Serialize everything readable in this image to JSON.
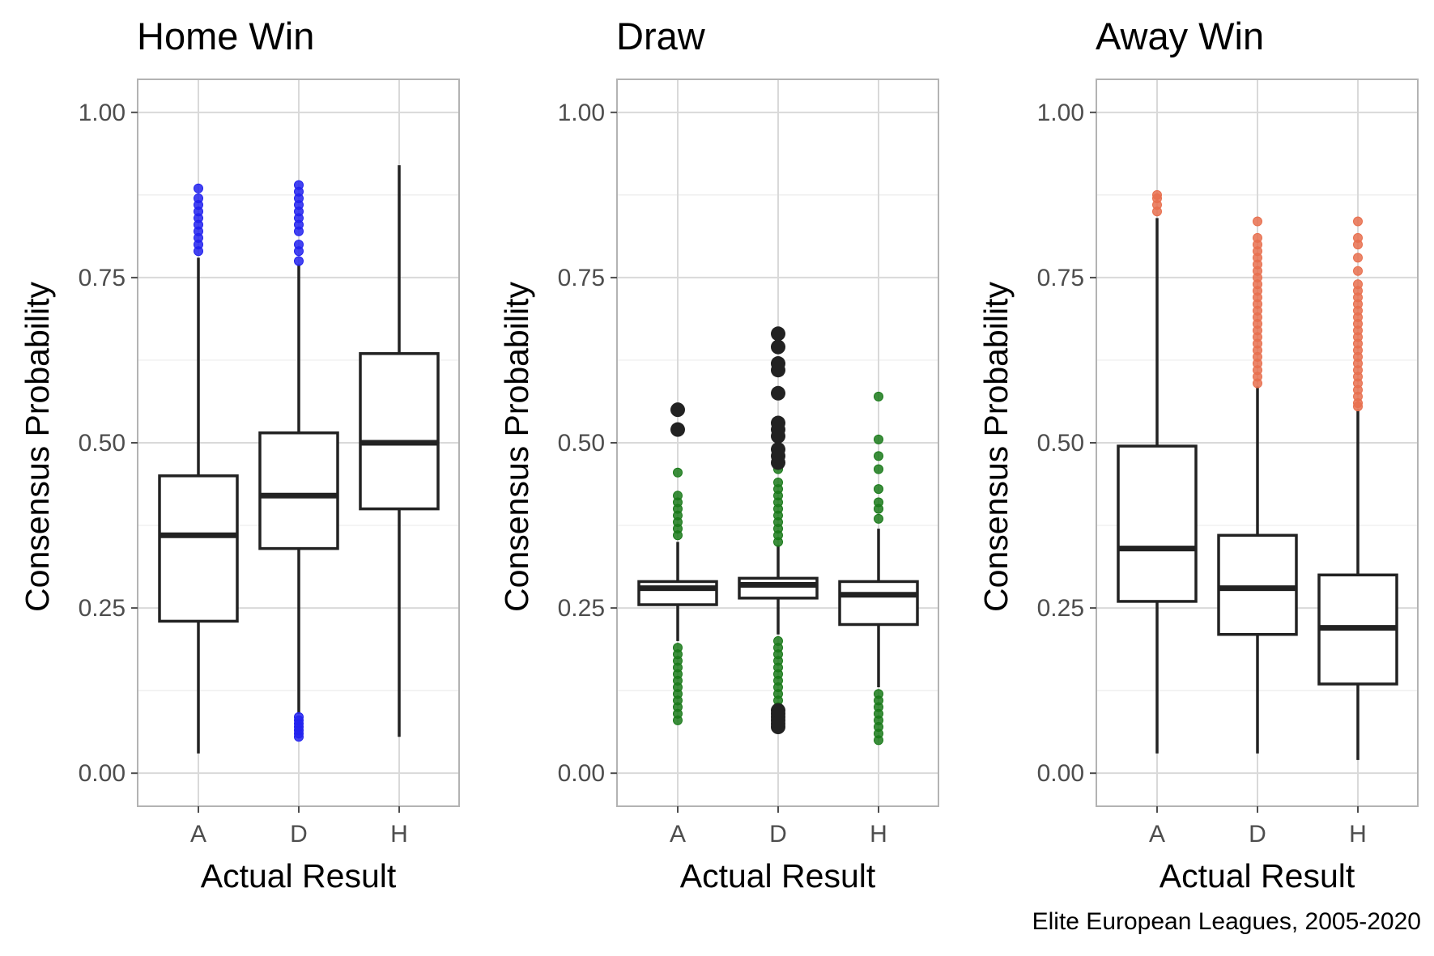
{
  "caption": "Elite European Leagues, 2005-2020",
  "chart_data": [
    {
      "type": "box",
      "title": "Home Win",
      "xlabel": "Actual Result",
      "ylabel": "Consensus Probability",
      "categories": [
        "A",
        "D",
        "H"
      ],
      "ylim": [
        -0.05,
        1.05
      ],
      "yticks": [
        "0.00",
        "0.25",
        "0.50",
        "0.75",
        "1.00"
      ],
      "outlier_color": "#2222ee",
      "grid": true,
      "boxes": [
        {
          "category": "A",
          "whisker_low": 0.03,
          "q1": 0.23,
          "median": 0.36,
          "q3": 0.45,
          "whisker_high": 0.78,
          "outliers": [
            0.79,
            0.8,
            0.81,
            0.82,
            0.83,
            0.84,
            0.85,
            0.86,
            0.87,
            0.885
          ]
        },
        {
          "category": "D",
          "whisker_low": 0.09,
          "q1": 0.34,
          "median": 0.42,
          "q3": 0.515,
          "whisker_high": 0.77,
          "outliers": [
            0.055,
            0.06,
            0.065,
            0.07,
            0.075,
            0.08,
            0.085,
            0.775,
            0.79,
            0.8,
            0.82,
            0.83,
            0.84,
            0.85,
            0.86,
            0.87,
            0.88,
            0.89
          ]
        },
        {
          "category": "H",
          "whisker_low": 0.055,
          "q1": 0.4,
          "median": 0.5,
          "q3": 0.635,
          "whisker_high": 0.92,
          "outliers": []
        }
      ]
    },
    {
      "type": "box",
      "title": "Draw",
      "xlabel": "Actual Result",
      "ylabel": "Consensus Probability",
      "categories": [
        "A",
        "D",
        "H"
      ],
      "ylim": [
        -0.05,
        1.05
      ],
      "yticks": [
        "0.00",
        "0.25",
        "0.50",
        "0.75",
        "1.00"
      ],
      "outlier_color": "#1a7a1a",
      "grid": true,
      "boxes": [
        {
          "category": "A",
          "whisker_low": 0.2,
          "q1": 0.255,
          "median": 0.28,
          "q3": 0.29,
          "whisker_high": 0.35,
          "outliers": [
            0.08,
            0.09,
            0.1,
            0.11,
            0.12,
            0.13,
            0.14,
            0.15,
            0.16,
            0.17,
            0.18,
            0.19,
            0.36,
            0.37,
            0.38,
            0.39,
            0.4,
            0.41,
            0.42,
            0.455
          ],
          "large_outliers": [
            0.52,
            0.55
          ]
        },
        {
          "category": "D",
          "whisker_low": 0.21,
          "q1": 0.265,
          "median": 0.285,
          "q3": 0.295,
          "whisker_high": 0.345,
          "outliers": [
            0.1,
            0.11,
            0.12,
            0.13,
            0.14,
            0.15,
            0.16,
            0.17,
            0.18,
            0.19,
            0.2,
            0.35,
            0.36,
            0.37,
            0.38,
            0.39,
            0.4,
            0.41,
            0.42,
            0.43,
            0.44,
            0.46
          ],
          "large_outliers": [
            0.07,
            0.075,
            0.08,
            0.085,
            0.09,
            0.095,
            0.47,
            0.48,
            0.49,
            0.51,
            0.52,
            0.53,
            0.575,
            0.61,
            0.62,
            0.645,
            0.665
          ]
        },
        {
          "category": "H",
          "whisker_low": 0.13,
          "q1": 0.225,
          "median": 0.27,
          "q3": 0.29,
          "whisker_high": 0.37,
          "outliers": [
            0.05,
            0.06,
            0.07,
            0.08,
            0.09,
            0.1,
            0.11,
            0.12,
            0.385,
            0.4,
            0.41,
            0.43,
            0.46,
            0.48,
            0.505,
            0.57
          ],
          "large_outliers": []
        }
      ]
    },
    {
      "type": "box",
      "title": "Away Win",
      "xlabel": "Actual Result",
      "ylabel": "Consensus Probability",
      "categories": [
        "A",
        "D",
        "H"
      ],
      "ylim": [
        -0.05,
        1.05
      ],
      "yticks": [
        "0.00",
        "0.25",
        "0.50",
        "0.75",
        "1.00"
      ],
      "outlier_color": "#e8704f",
      "grid": true,
      "boxes": [
        {
          "category": "A",
          "whisker_low": 0.03,
          "q1": 0.26,
          "median": 0.34,
          "q3": 0.495,
          "whisker_high": 0.84,
          "outliers": [
            0.85,
            0.86,
            0.87,
            0.875
          ]
        },
        {
          "category": "D",
          "whisker_low": 0.03,
          "q1": 0.21,
          "median": 0.28,
          "q3": 0.36,
          "whisker_high": 0.585,
          "outliers": [
            0.59,
            0.6,
            0.61,
            0.62,
            0.63,
            0.64,
            0.65,
            0.66,
            0.67,
            0.68,
            0.69,
            0.7,
            0.71,
            0.72,
            0.73,
            0.74,
            0.75,
            0.76,
            0.77,
            0.78,
            0.79,
            0.8,
            0.81,
            0.835
          ]
        },
        {
          "category": "H",
          "whisker_low": 0.02,
          "q1": 0.135,
          "median": 0.22,
          "q3": 0.3,
          "whisker_high": 0.55,
          "outliers": [
            0.555,
            0.56,
            0.57,
            0.58,
            0.59,
            0.6,
            0.61,
            0.62,
            0.63,
            0.64,
            0.65,
            0.66,
            0.67,
            0.68,
            0.69,
            0.7,
            0.71,
            0.72,
            0.73,
            0.74,
            0.76,
            0.78,
            0.8,
            0.81,
            0.835
          ]
        }
      ]
    }
  ]
}
